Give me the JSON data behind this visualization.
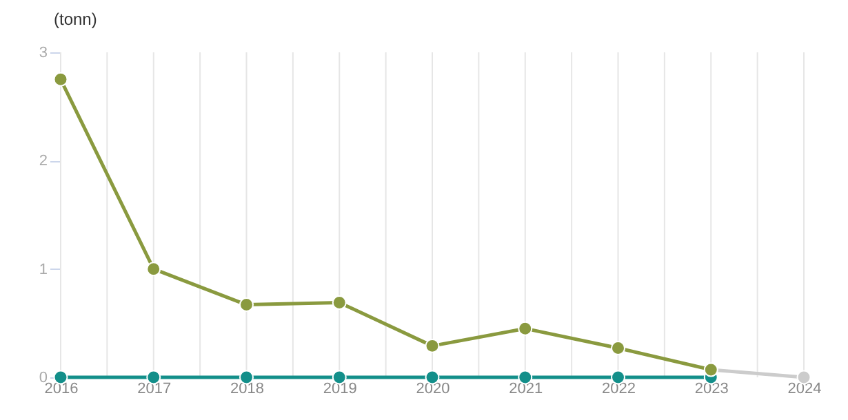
{
  "chart_data": {
    "type": "line",
    "ylabel": "(tonn)",
    "x": [
      2016,
      2017,
      2018,
      2019,
      2020,
      2021,
      2022,
      2023
    ],
    "series": [
      {
        "color": "#cccccc",
        "x": [
          2023,
          2024
        ],
        "values": [
          0.07,
          0
        ]
      },
      {
        "color": "#138f8a",
        "values": [
          0,
          0,
          0,
          0,
          0,
          0,
          0,
          0
        ]
      },
      {
        "color": "#8a9a3f",
        "values": [
          2.75,
          1.0,
          0.67,
          0.69,
          0.29,
          0.45,
          0.27,
          0.07
        ]
      }
    ],
    "xlim": [
      2016,
      2024
    ],
    "xticks": [
      2016,
      {
        "value": 2016.5,
        "label": null
      },
      2017,
      {
        "value": 2017.5,
        "label": null
      },
      2018,
      {
        "value": 2018.5,
        "label": null
      },
      2019,
      {
        "value": 2019.5,
        "label": null
      },
      2020,
      {
        "value": 2020.5,
        "label": null
      },
      2021,
      {
        "value": 2021.5,
        "label": null
      },
      2022,
      {
        "value": 2022.5,
        "label": null
      },
      2023,
      {
        "value": 2023.5,
        "label": null
      },
      2024
    ],
    "ylim": [
      0,
      3
    ],
    "yticks": [
      0,
      1,
      2,
      3
    ],
    "grid": "x",
    "marker": "circle",
    "line_style": "solid"
  }
}
